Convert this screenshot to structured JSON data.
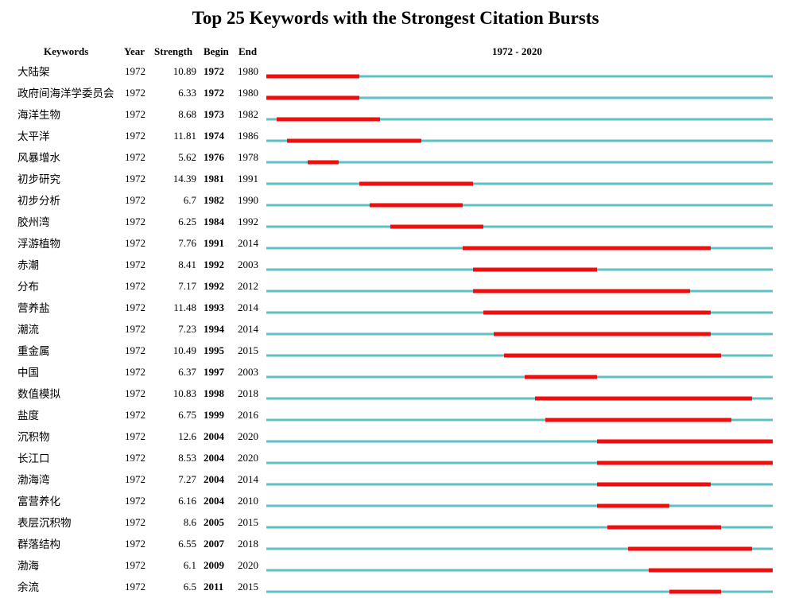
{
  "title": "Top 25 Keywords with the Strongest Citation Bursts",
  "headers": {
    "keywords": "Keywords",
    "year": "Year",
    "strength": "Strength",
    "begin": "Begin",
    "end": "End",
    "range": "1972 - 2020"
  },
  "colors": {
    "timeline": "#5dc1c4",
    "burst": "#f20d0d",
    "text": "#000000"
  },
  "chart_data": {
    "type": "table",
    "time_range": [
      1972,
      2020
    ],
    "columns": [
      "Keywords",
      "Year",
      "Strength",
      "Begin",
      "End"
    ],
    "rows": [
      {
        "keyword": "大陆架",
        "year": 1972,
        "strength": "10.89",
        "begin": 1972,
        "end": 1980
      },
      {
        "keyword": "政府间海洋学委员会",
        "year": 1972,
        "strength": "6.33",
        "begin": 1972,
        "end": 1980
      },
      {
        "keyword": "海洋生物",
        "year": 1972,
        "strength": "8.68",
        "begin": 1973,
        "end": 1982
      },
      {
        "keyword": "太平洋",
        "year": 1972,
        "strength": "11.81",
        "begin": 1974,
        "end": 1986
      },
      {
        "keyword": "风暴增水",
        "year": 1972,
        "strength": "5.62",
        "begin": 1976,
        "end": 1978
      },
      {
        "keyword": "初步研究",
        "year": 1972,
        "strength": "14.39",
        "begin": 1981,
        "end": 1991
      },
      {
        "keyword": "初步分析",
        "year": 1972,
        "strength": "6.7",
        "begin": 1982,
        "end": 1990
      },
      {
        "keyword": "胶州湾",
        "year": 1972,
        "strength": "6.25",
        "begin": 1984,
        "end": 1992
      },
      {
        "keyword": "浮游植物",
        "year": 1972,
        "strength": "7.76",
        "begin": 1991,
        "end": 2014
      },
      {
        "keyword": "赤潮",
        "year": 1972,
        "strength": "8.41",
        "begin": 1992,
        "end": 2003
      },
      {
        "keyword": "分布",
        "year": 1972,
        "strength": "7.17",
        "begin": 1992,
        "end": 2012
      },
      {
        "keyword": "营养盐",
        "year": 1972,
        "strength": "11.48",
        "begin": 1993,
        "end": 2014
      },
      {
        "keyword": "潮流",
        "year": 1972,
        "strength": "7.23",
        "begin": 1994,
        "end": 2014
      },
      {
        "keyword": "重金属",
        "year": 1972,
        "strength": "10.49",
        "begin": 1995,
        "end": 2015
      },
      {
        "keyword": "中国",
        "year": 1972,
        "strength": "6.37",
        "begin": 1997,
        "end": 2003
      },
      {
        "keyword": "数值模拟",
        "year": 1972,
        "strength": "10.83",
        "begin": 1998,
        "end": 2018
      },
      {
        "keyword": "盐度",
        "year": 1972,
        "strength": "6.75",
        "begin": 1999,
        "end": 2016
      },
      {
        "keyword": "沉积物",
        "year": 1972,
        "strength": "12.6",
        "begin": 2004,
        "end": 2020
      },
      {
        "keyword": "长江口",
        "year": 1972,
        "strength": "8.53",
        "begin": 2004,
        "end": 2020
      },
      {
        "keyword": "渤海湾",
        "year": 1972,
        "strength": "7.27",
        "begin": 2004,
        "end": 2014
      },
      {
        "keyword": "富营养化",
        "year": 1972,
        "strength": "6.16",
        "begin": 2004,
        "end": 2010
      },
      {
        "keyword": "表层沉积物",
        "year": 1972,
        "strength": "8.6",
        "begin": 2005,
        "end": 2015
      },
      {
        "keyword": "群落结构",
        "year": 1972,
        "strength": "6.55",
        "begin": 2007,
        "end": 2018
      },
      {
        "keyword": "渤海",
        "year": 1972,
        "strength": "6.1",
        "begin": 2009,
        "end": 2020
      },
      {
        "keyword": "余流",
        "year": 1972,
        "strength": "6.5",
        "begin": 2011,
        "end": 2015
      }
    ]
  }
}
